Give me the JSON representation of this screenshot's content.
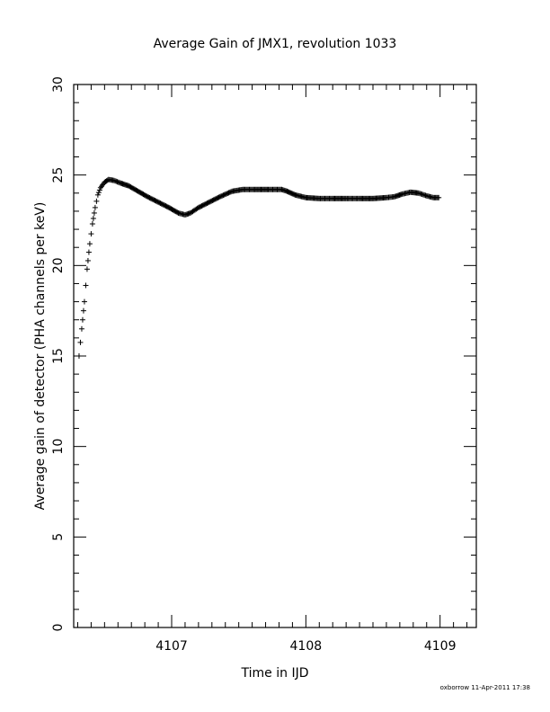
{
  "chart_data": {
    "type": "scatter",
    "title": "Average Gain of JMX1, revolution 1033",
    "xlabel": "Time in IJD",
    "ylabel": "Average gain of detector (PHA channels per keV)",
    "xlim": [
      4106.27,
      4109.27
    ],
    "ylim": [
      0,
      30
    ],
    "x_ticks": [
      4107,
      4108,
      4109
    ],
    "y_ticks": [
      0,
      5,
      10,
      15,
      20,
      25,
      30
    ],
    "x_minor_step": 0.1,
    "y_minor_step": 1,
    "grid": false,
    "marker": "plus",
    "series": [
      {
        "x": [
          4106.31,
          4106.33,
          4106.35,
          4106.37,
          4106.39,
          4106.41,
          4106.43,
          4106.45,
          4106.47,
          4106.5,
          4106.53,
          4106.57,
          4106.62,
          4106.68,
          4106.75,
          4106.82,
          4106.9,
          4106.98,
          4107.05,
          4107.1,
          4107.14,
          4107.2,
          4107.28,
          4107.36,
          4107.45,
          4107.53,
          4107.62,
          4107.72,
          4107.82,
          4107.86,
          4107.92,
          4108.0,
          4108.1,
          4108.2,
          4108.3,
          4108.4,
          4108.5,
          4108.6,
          4108.66,
          4108.72,
          4108.78,
          4108.84,
          4108.9,
          4108.95,
          4108.99
        ],
        "y": [
          15.0,
          16.5,
          18.0,
          19.8,
          21.2,
          22.3,
          23.2,
          23.9,
          24.3,
          24.6,
          24.75,
          24.7,
          24.55,
          24.4,
          24.1,
          23.8,
          23.5,
          23.2,
          22.9,
          22.8,
          22.9,
          23.2,
          23.5,
          23.8,
          24.1,
          24.2,
          24.2,
          24.2,
          24.2,
          24.1,
          23.9,
          23.75,
          23.7,
          23.7,
          23.7,
          23.7,
          23.7,
          23.75,
          23.8,
          23.95,
          24.05,
          24.0,
          23.85,
          23.75,
          23.75
        ]
      }
    ]
  },
  "footer": "oxborrow 11-Apr-2011 17:38"
}
